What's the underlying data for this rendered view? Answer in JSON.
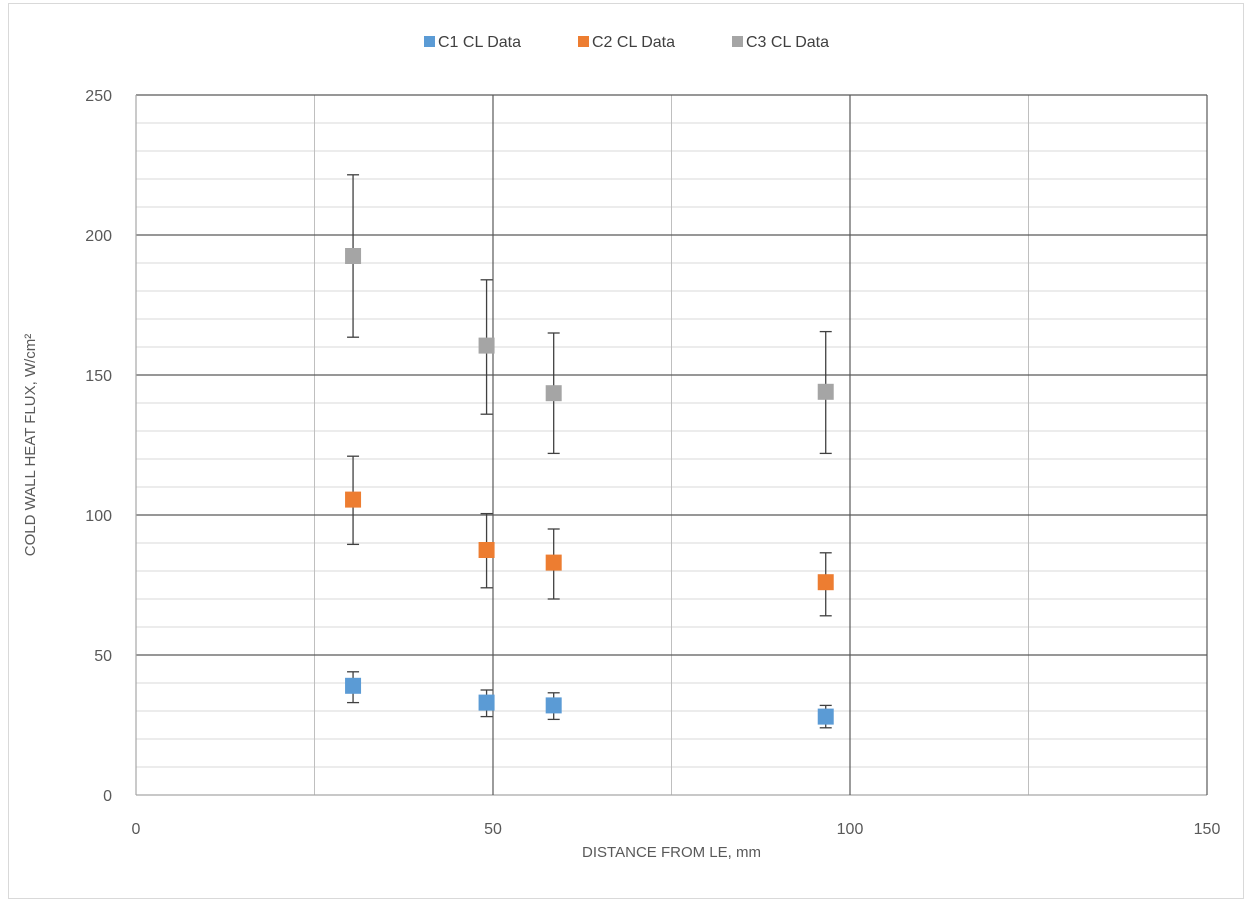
{
  "chart_data": {
    "type": "scatter",
    "title": "",
    "xlabel": "DISTANCE FROM LE, mm",
    "ylabel": "COLD WALL HEAT FLUX, W/cm²",
    "xlim": [
      0,
      150
    ],
    "ylim": [
      0,
      250
    ],
    "x_ticks": [
      0,
      50,
      100,
      150
    ],
    "y_ticks": [
      0,
      50,
      100,
      150,
      200,
      250
    ],
    "x_major_grid": [
      0,
      50,
      100,
      150
    ],
    "x_minor_grid": [
      25,
      75,
      125
    ],
    "y_major_grid": [
      0,
      50,
      100,
      150,
      200,
      250
    ],
    "y_minor_step": 10,
    "grid": true,
    "legend_position": "top",
    "series": [
      {
        "name": "C1 CL Data",
        "color": "#5b9bd5",
        "points": [
          {
            "x": 30.4,
            "y": 39,
            "err_low": 33,
            "err_high": 44
          },
          {
            "x": 49.1,
            "y": 33,
            "err_low": 28,
            "err_high": 37.5
          },
          {
            "x": 58.5,
            "y": 32,
            "err_low": 27,
            "err_high": 36.5
          },
          {
            "x": 96.6,
            "y": 28,
            "err_low": 24,
            "err_high": 32
          }
        ]
      },
      {
        "name": "C2 CL Data",
        "color": "#ed7d31",
        "points": [
          {
            "x": 30.4,
            "y": 105.5,
            "err_low": 89.5,
            "err_high": 121
          },
          {
            "x": 49.1,
            "y": 87.5,
            "err_low": 74,
            "err_high": 100.5
          },
          {
            "x": 58.5,
            "y": 83,
            "err_low": 70,
            "err_high": 95
          },
          {
            "x": 96.6,
            "y": 76,
            "err_low": 64,
            "err_high": 86.5
          }
        ]
      },
      {
        "name": "C3 CL Data",
        "color": "#a5a5a5",
        "points": [
          {
            "x": 30.4,
            "y": 192.5,
            "err_low": 163.5,
            "err_high": 221.5
          },
          {
            "x": 49.1,
            "y": 160.5,
            "err_low": 136,
            "err_high": 184
          },
          {
            "x": 58.5,
            "y": 143.5,
            "err_low": 122,
            "err_high": 165
          },
          {
            "x": 96.6,
            "y": 144,
            "err_low": 122,
            "err_high": 165.5
          }
        ]
      }
    ]
  }
}
